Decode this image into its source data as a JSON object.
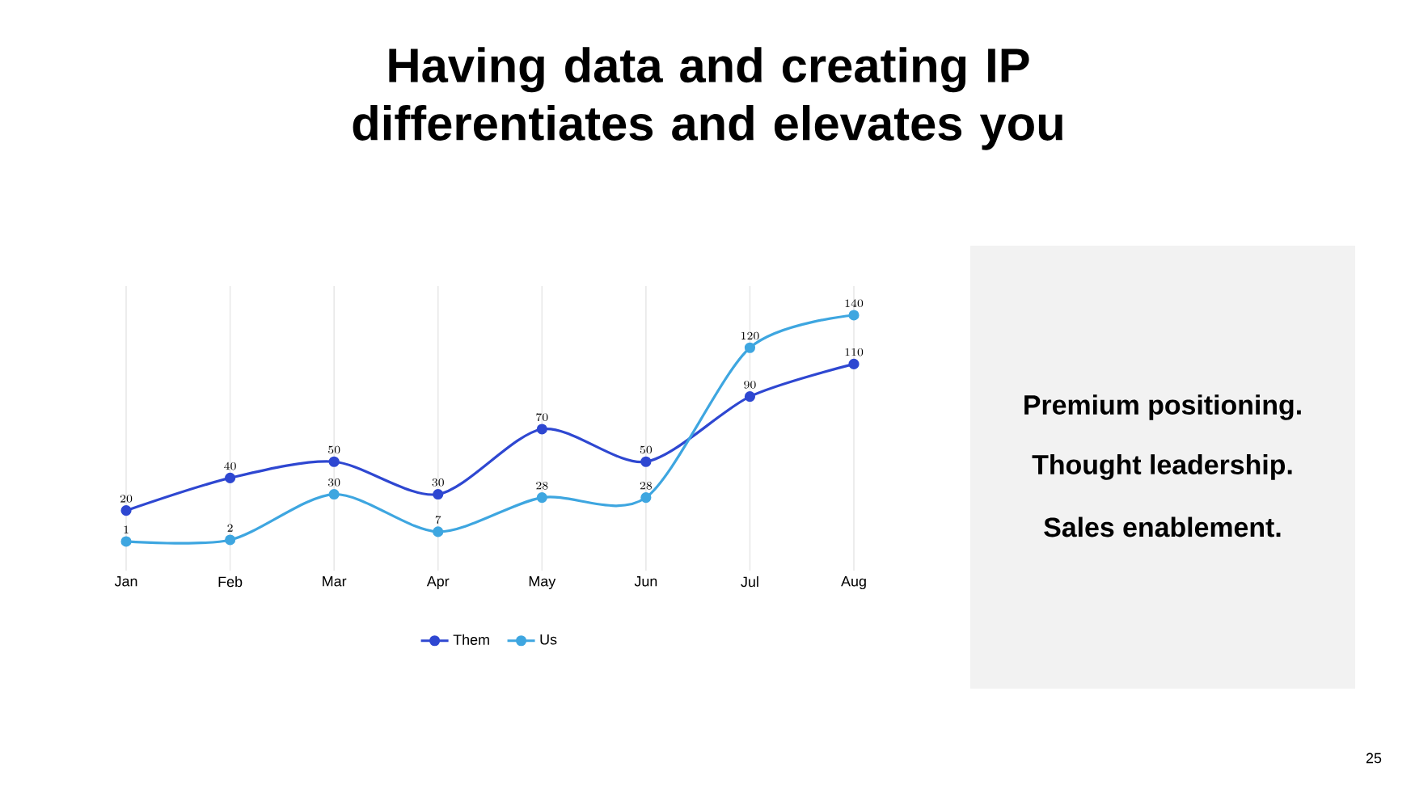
{
  "chart_data": {
    "type": "line",
    "title": "Having data and creating IP differentiates and elevates you",
    "categories": [
      "Jan",
      "Feb",
      "Mar",
      "Apr",
      "May",
      "Jun",
      "Jul",
      "Aug"
    ],
    "series": [
      {
        "name": "Them",
        "color": "#2e47d1",
        "values": [
          20,
          40,
          50,
          30,
          70,
          50,
          90,
          110
        ]
      },
      {
        "name": "Us",
        "color": "#3ea6e0",
        "values": [
          1,
          2,
          30,
          7,
          28,
          28,
          120,
          140
        ]
      }
    ],
    "data_labels": true,
    "grid": "x",
    "legend": "bottom",
    "marker": "circle",
    "line_style": "solid",
    "annotations": [
      "Premium positioning.",
      "Thought leadership.",
      "Sales enablement.",
      "25"
    ]
  }
}
